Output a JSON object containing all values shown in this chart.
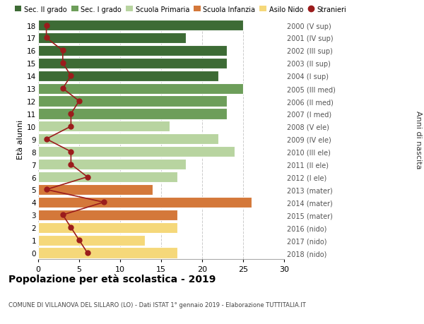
{
  "ages": [
    18,
    17,
    16,
    15,
    14,
    13,
    12,
    11,
    10,
    9,
    8,
    7,
    6,
    5,
    4,
    3,
    2,
    1,
    0
  ],
  "right_labels": [
    "2000 (V sup)",
    "2001 (IV sup)",
    "2002 (III sup)",
    "2003 (II sup)",
    "2004 (I sup)",
    "2005 (III med)",
    "2006 (II med)",
    "2007 (I med)",
    "2008 (V ele)",
    "2009 (IV ele)",
    "2010 (III ele)",
    "2011 (II ele)",
    "2012 (I ele)",
    "2013 (mater)",
    "2014 (mater)",
    "2015 (mater)",
    "2016 (nido)",
    "2017 (nido)",
    "2018 (nido)"
  ],
  "bar_values": [
    25,
    18,
    23,
    23,
    22,
    25,
    23,
    23,
    16,
    22,
    24,
    18,
    17,
    14,
    26,
    17,
    17,
    13,
    17
  ],
  "stranieri": [
    1,
    1,
    3,
    3,
    4,
    3,
    5,
    4,
    4,
    1,
    4,
    4,
    6,
    1,
    8,
    3,
    4,
    5,
    6
  ],
  "categories": {
    "sec2": [
      18,
      17,
      16,
      15,
      14
    ],
    "sec1": [
      13,
      12,
      11
    ],
    "primaria": [
      10,
      9,
      8,
      7,
      6
    ],
    "infanzia": [
      5,
      4,
      3
    ],
    "nido": [
      2,
      1,
      0
    ]
  },
  "colors": {
    "sec2": "#3d6b35",
    "sec1": "#6d9e5a",
    "primaria": "#b8d4a0",
    "infanzia": "#d4783a",
    "nido": "#f5d87a"
  },
  "stranieri_color": "#9b1c1c",
  "title": "Popolazione per età scolastica - 2019",
  "subtitle": "COMUNE DI VILLANOVA DEL SILLARO (LO) - Dati ISTAT 1° gennaio 2019 - Elaborazione TUTTITALIA.IT",
  "xlabel_left": "Età alunni",
  "xlabel_right": "Anni di nascita",
  "xlim": [
    0,
    30
  ],
  "background_color": "#ffffff",
  "grid_color": "#cccccc",
  "legend_labels": [
    "Sec. II grado",
    "Sec. I grado",
    "Scuola Primaria",
    "Scuola Infanzia",
    "Asilo Nido",
    "Stranieri"
  ]
}
